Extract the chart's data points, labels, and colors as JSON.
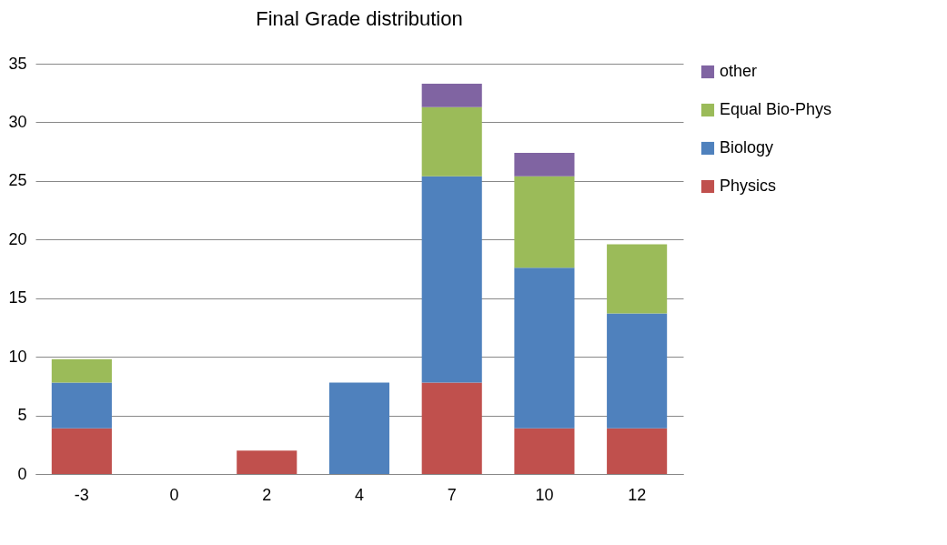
{
  "chart_data": {
    "type": "bar",
    "title": "Final Grade distribution",
    "stacked": true,
    "categories": [
      "-3",
      "0",
      "2",
      "4",
      "7",
      "10",
      "12"
    ],
    "series": [
      {
        "name": "Physics",
        "color": "#c0504d",
        "values": [
          3.9,
          null,
          2.0,
          null,
          7.8,
          3.9,
          3.9
        ]
      },
      {
        "name": "Biology",
        "color": "#4f81bd",
        "values": [
          3.9,
          null,
          null,
          7.8,
          17.6,
          13.7,
          9.8
        ]
      },
      {
        "name": "Equal Bio-Phys",
        "color": "#9bbb59",
        "values": [
          2.0,
          null,
          null,
          null,
          5.9,
          7.8,
          5.9
        ]
      },
      {
        "name": "other",
        "color": "#8064a2",
        "values": [
          null,
          null,
          null,
          null,
          2.0,
          2.0,
          null
        ]
      }
    ],
    "ylim": [
      0,
      35
    ],
    "yticks": [
      0,
      5,
      10,
      15,
      20,
      25,
      30,
      35
    ],
    "grid": "y",
    "legend": "right"
  }
}
